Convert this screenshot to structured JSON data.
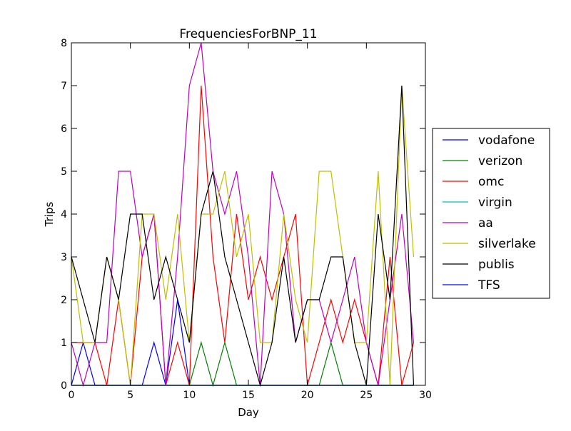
{
  "chart_data": {
    "type": "line",
    "title": "FrequenciesForBNP_11",
    "xlabel": "Day",
    "ylabel": "Trips",
    "xlim": [
      0,
      30
    ],
    "ylim": [
      0,
      8
    ],
    "xticks": [
      0,
      5,
      10,
      15,
      20,
      25,
      30
    ],
    "yticks": [
      0,
      1,
      2,
      3,
      4,
      5,
      6,
      7,
      8
    ],
    "grid": false,
    "legend_position": "right",
    "x": [
      0,
      1,
      2,
      3,
      4,
      5,
      6,
      7,
      8,
      9,
      10,
      11,
      12,
      13,
      14,
      15,
      16,
      17,
      18,
      19,
      20,
      21,
      22,
      23,
      24,
      25,
      26,
      27,
      28,
      29
    ],
    "series": [
      {
        "name": "vodafone",
        "color": "#0000ff",
        "values": [
          0,
          1,
          0,
          0,
          0,
          0,
          0,
          1,
          0,
          2,
          0,
          0,
          0,
          0,
          0,
          0,
          0,
          0,
          0,
          0,
          0,
          0,
          0,
          0,
          0,
          0,
          0,
          0,
          0,
          0
        ]
      },
      {
        "name": "verizon",
        "color": "#008000",
        "values": [
          0,
          0,
          0,
          0,
          0,
          0,
          0,
          0,
          0,
          0,
          0,
          1,
          0,
          1,
          0,
          0,
          0,
          0,
          0,
          0,
          0,
          0,
          1,
          0,
          0,
          0,
          0,
          0,
          0,
          0
        ]
      },
      {
        "name": "omc",
        "color": "#ff0000",
        "values": [
          1,
          1,
          1,
          0,
          2,
          0,
          3,
          4,
          0,
          1,
          0,
          7,
          3,
          1,
          4,
          2,
          3,
          2,
          3,
          4,
          0,
          1,
          2,
          1,
          2,
          1,
          0,
          3,
          0,
          1
        ]
      },
      {
        "name": "virgin",
        "color": "#00bfbf",
        "values": [
          0,
          0,
          0,
          0,
          0,
          0,
          0,
          0,
          0,
          0,
          0,
          0,
          0,
          0,
          0,
          0,
          0,
          0,
          0,
          0,
          0,
          0,
          0,
          0,
          0,
          0,
          0,
          0,
          0,
          0
        ]
      },
      {
        "name": "aa",
        "color": "#bf00bf",
        "values": [
          1,
          0,
          1,
          1,
          5,
          5,
          3,
          4,
          0,
          3,
          7,
          8,
          5,
          4,
          5,
          3,
          0,
          5,
          4,
          1,
          2,
          2,
          1,
          2,
          3,
          1,
          0,
          2,
          4,
          1
        ]
      },
      {
        "name": "silverlake",
        "color": "#bfbf00",
        "values": [
          3,
          1,
          1,
          3,
          2,
          0,
          4,
          4,
          2,
          4,
          1,
          4,
          4,
          5,
          3,
          4,
          1,
          1,
          4,
          2,
          1,
          5,
          5,
          3,
          1,
          1,
          5,
          0,
          7,
          3
        ]
      },
      {
        "name": "publis",
        "color": "#000000",
        "values": [
          3,
          2,
          1,
          3,
          2,
          4,
          4,
          2,
          3,
          2,
          1,
          4,
          5,
          3,
          2,
          1,
          0,
          1,
          3,
          1,
          2,
          2,
          3,
          3,
          1,
          0,
          4,
          2,
          7,
          0
        ]
      },
      {
        "name": "TFS",
        "color": "#0000ff",
        "values": [
          0,
          0,
          0,
          0,
          0,
          0,
          0,
          0,
          0,
          0,
          0,
          0,
          0,
          0,
          0,
          0,
          0,
          0,
          0,
          0,
          0,
          0,
          0,
          0,
          0,
          0,
          0,
          0,
          0,
          0
        ]
      }
    ]
  }
}
